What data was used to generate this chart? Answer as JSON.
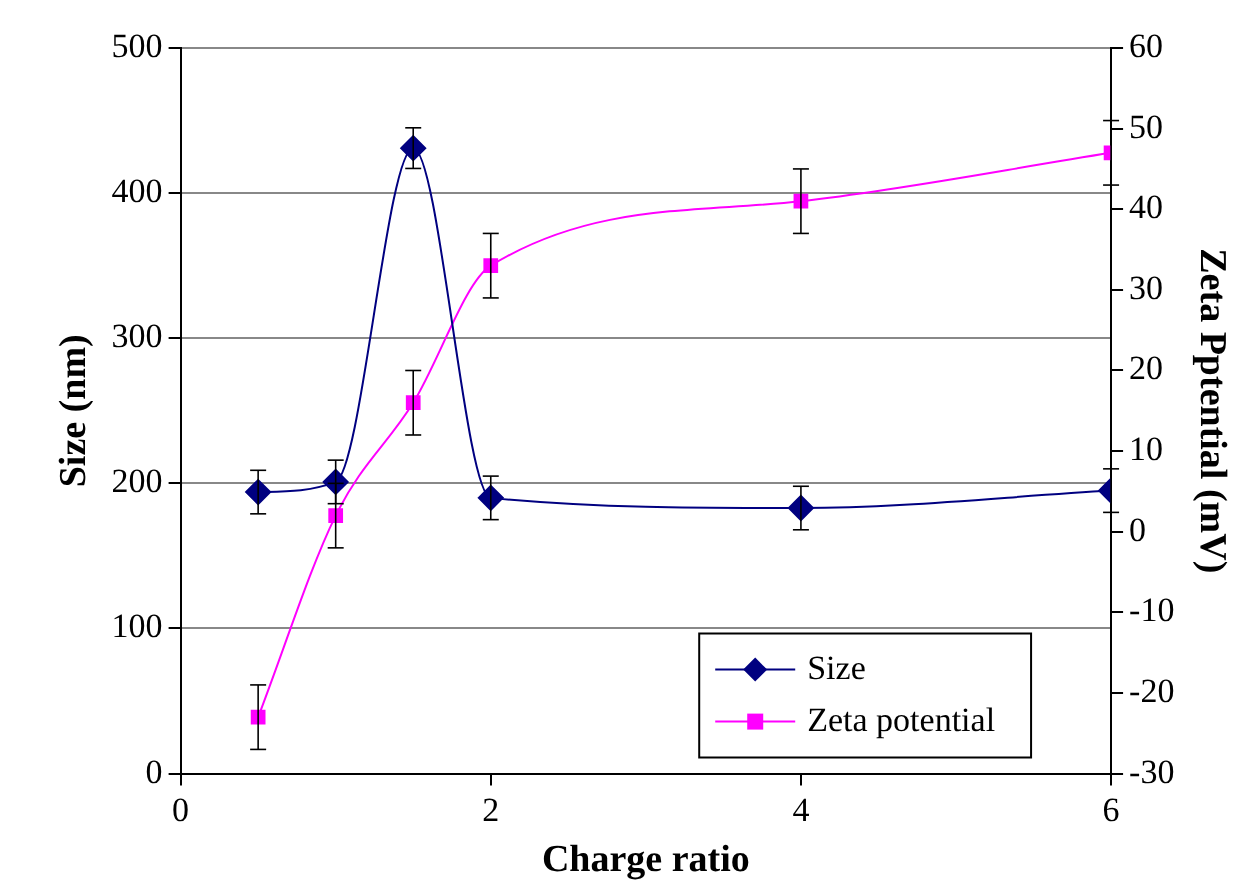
{
  "chart_data": {
    "type": "line",
    "xlabel": "Charge ratio",
    "ylabel": "Size (nm)",
    "y2label": "Zeta Pptential (mV)",
    "x": [
      0.5,
      1,
      1.5,
      2,
      4,
      6
    ],
    "series": [
      {
        "name": "Size",
        "color": "#000080",
        "marker": "diamond",
        "values": [
          194,
          201,
          431,
          190,
          183,
          195
        ],
        "errors": [
          15,
          15,
          14,
          15,
          15,
          15
        ]
      },
      {
        "name": "Zeta potential",
        "color": "#ff00ff",
        "marker": "square",
        "axis": "y2",
        "values": [
          -23,
          2,
          16,
          33,
          41,
          47
        ],
        "errors": [
          4,
          4,
          4,
          4,
          4,
          4
        ]
      }
    ],
    "xlim": [
      0,
      6
    ],
    "xticks": [
      0,
      2,
      4,
      6
    ],
    "ylim": [
      0,
      500
    ],
    "yticks": [
      0,
      100,
      200,
      300,
      400,
      500
    ],
    "y2lim": [
      -30,
      60
    ],
    "y2ticks": [
      -30,
      -20,
      -10,
      0,
      10,
      20,
      30,
      40,
      50,
      60
    ],
    "grid": "y",
    "legend": "bottom right",
    "line_style": "solid"
  }
}
